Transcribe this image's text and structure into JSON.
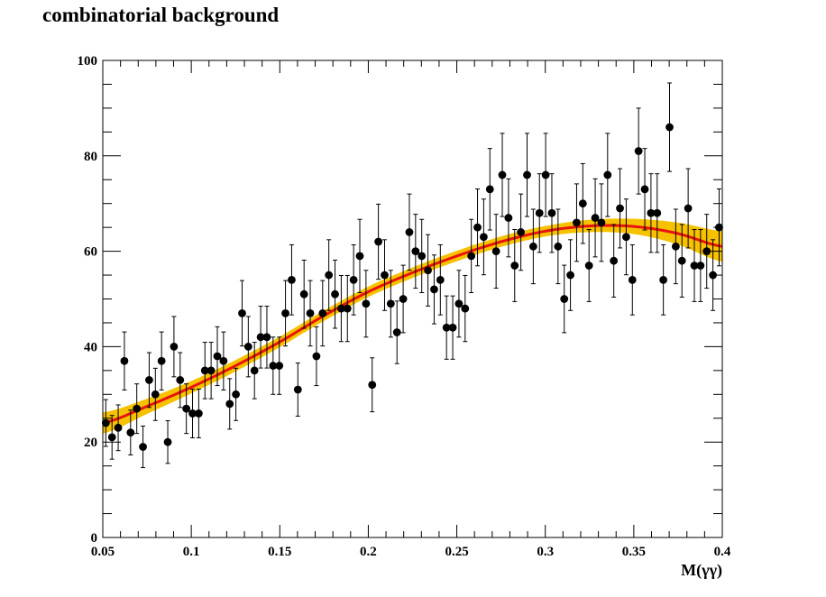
{
  "chart_data": {
    "type": "scatter",
    "title": "combinatorial background",
    "xlabel": "M(γγ)",
    "ylabel": "",
    "xlim": [
      0.05,
      0.4
    ],
    "ylim": [
      0,
      100
    ],
    "x_ticks": [
      "0.05",
      "0.1",
      "0.15",
      "0.2",
      "0.25",
      "0.3",
      "0.35",
      "0.4"
    ],
    "y_ticks": [
      "0",
      "20",
      "40",
      "60",
      "80",
      "100"
    ],
    "grid": false,
    "colors": {
      "points": "#000000",
      "fit_line": "#e8140c",
      "error_band": "#f6c200"
    },
    "fit": {
      "x": [
        0.05,
        0.075,
        0.1,
        0.125,
        0.15,
        0.175,
        0.2,
        0.225,
        0.25,
        0.275,
        0.3,
        0.325,
        0.35,
        0.375,
        0.4
      ],
      "y": [
        24,
        27.5,
        31.5,
        36,
        41,
        46.5,
        51.5,
        55.5,
        59,
        62,
        64.2,
        65.3,
        65.2,
        63.7,
        61
      ],
      "band_halfwidth": [
        2.2,
        1.6,
        1.3,
        1.2,
        1.1,
        1.1,
        1.1,
        1.1,
        1.1,
        1.1,
        1.1,
        1.3,
        1.6,
        2.3,
        3.2
      ]
    },
    "points": {
      "x": [
        0.0517,
        0.0552,
        0.0587,
        0.0622,
        0.0657,
        0.0692,
        0.0727,
        0.0762,
        0.0797,
        0.0832,
        0.0867,
        0.0902,
        0.0937,
        0.0972,
        0.1007,
        0.1042,
        0.1077,
        0.1112,
        0.1147,
        0.1182,
        0.1217,
        0.1252,
        0.1287,
        0.1322,
        0.1357,
        0.1392,
        0.1427,
        0.1462,
        0.1497,
        0.1532,
        0.1567,
        0.1602,
        0.1637,
        0.1672,
        0.1707,
        0.1742,
        0.1777,
        0.1812,
        0.1847,
        0.1882,
        0.1917,
        0.1952,
        0.1987,
        0.2022,
        0.2057,
        0.2092,
        0.2127,
        0.2162,
        0.2197,
        0.2232,
        0.2267,
        0.2302,
        0.2337,
        0.2372,
        0.2407,
        0.2442,
        0.2477,
        0.2512,
        0.2547,
        0.2582,
        0.2617,
        0.2652,
        0.2687,
        0.2722,
        0.2757,
        0.2792,
        0.2827,
        0.2862,
        0.2897,
        0.2932,
        0.2967,
        0.3002,
        0.3037,
        0.3072,
        0.3107,
        0.3142,
        0.3177,
        0.3212,
        0.3247,
        0.3282,
        0.3317,
        0.3352,
        0.3387,
        0.3422,
        0.3457,
        0.3492,
        0.3527,
        0.3562,
        0.3597,
        0.3632,
        0.3667,
        0.3702,
        0.3737,
        0.3772,
        0.3807,
        0.3842,
        0.3877,
        0.3912,
        0.3947,
        0.3982
      ],
      "y": [
        24,
        21,
        23,
        37,
        22,
        27,
        19,
        33,
        30,
        37,
        20,
        40,
        33,
        27,
        26,
        26,
        35,
        35,
        38,
        37,
        28,
        30,
        47,
        40,
        35,
        42,
        42,
        36,
        36,
        47,
        54,
        31,
        51,
        47,
        38,
        47,
        55,
        51,
        48,
        48,
        54,
        59,
        49,
        32,
        62,
        55,
        49,
        43,
        50,
        64,
        60,
        59,
        56,
        52,
        54,
        44,
        44,
        49,
        48,
        59,
        65,
        63,
        73,
        60,
        76,
        67,
        57,
        64,
        76,
        61,
        68,
        76,
        68,
        61,
        50,
        55,
        66,
        70,
        57,
        67,
        66,
        76,
        58,
        69,
        63,
        54,
        81,
        73,
        68,
        68,
        54,
        86,
        61,
        58,
        69,
        57,
        57,
        60,
        55,
        65
      ]
    }
  }
}
